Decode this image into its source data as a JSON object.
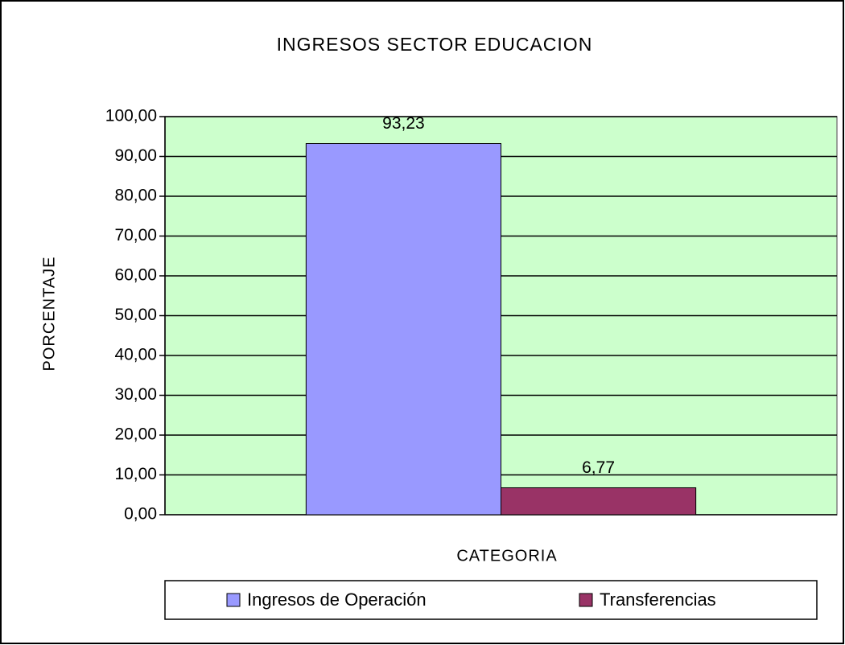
{
  "chart_data": {
    "type": "bar",
    "title": "INGRESOS SECTOR EDUCACION",
    "x_label": "CATEGORIA",
    "y_label": "PORCENTAJE",
    "categories": [
      null
    ],
    "series": [
      {
        "name": "Ingresos de Operación",
        "color": "#9999ff",
        "values": [
          93.23
        ],
        "value_labels": [
          "93,23"
        ]
      },
      {
        "name": "Transferencias",
        "color": "#993366",
        "values": [
          6.77
        ],
        "value_labels": [
          "6,77"
        ]
      }
    ],
    "ylim": [
      0,
      100
    ],
    "yticks": [
      {
        "value": 0,
        "label": "0,00"
      },
      {
        "value": 10,
        "label": "10,00"
      },
      {
        "value": 20,
        "label": "20,00"
      },
      {
        "value": 30,
        "label": "30,00"
      },
      {
        "value": 40,
        "label": "40,00"
      },
      {
        "value": 50,
        "label": "50,00"
      },
      {
        "value": 60,
        "label": "60,00"
      },
      {
        "value": 70,
        "label": "70,00"
      },
      {
        "value": 80,
        "label": "80,00"
      },
      {
        "value": 90,
        "label": "90,00"
      },
      {
        "value": 100,
        "label": "100,00"
      }
    ],
    "grid": true,
    "plot_background": "#ccffcc",
    "legend": "bottom"
  }
}
